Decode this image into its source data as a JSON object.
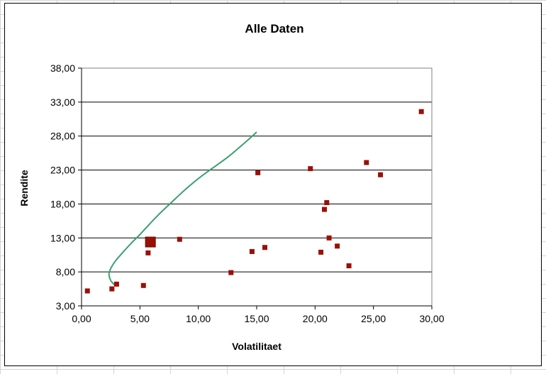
{
  "chart_data": {
    "type": "scatter",
    "title": "Alle Daten",
    "xlabel": "Volatilitaet",
    "ylabel": "Rendite",
    "xlim": [
      0,
      30
    ],
    "ylim": [
      3,
      38
    ],
    "x_ticks": [
      "0,00",
      "5,00",
      "10,00",
      "15,00",
      "20,00",
      "25,00",
      "30,00"
    ],
    "x_tick_values": [
      0,
      5,
      10,
      15,
      20,
      25,
      30
    ],
    "y_ticks": [
      "3,00",
      "8,00",
      "13,00",
      "18,00",
      "23,00",
      "28,00",
      "33,00",
      "38,00"
    ],
    "y_tick_values": [
      3,
      8,
      13,
      18,
      23,
      28,
      33,
      38
    ],
    "grid": "horizontal",
    "marker_color": "#9a1006",
    "curve_color": "#3aa06f",
    "points": [
      {
        "x": 0.5,
        "y": 5.2
      },
      {
        "x": 2.6,
        "y": 5.5
      },
      {
        "x": 3.0,
        "y": 6.2
      },
      {
        "x": 5.3,
        "y": 6.0
      },
      {
        "x": 5.7,
        "y": 10.8
      },
      {
        "x": 8.4,
        "y": 12.8
      },
      {
        "x": 12.8,
        "y": 7.9
      },
      {
        "x": 14.6,
        "y": 11.0
      },
      {
        "x": 15.1,
        "y": 22.6
      },
      {
        "x": 15.7,
        "y": 11.6
      },
      {
        "x": 19.6,
        "y": 23.2
      },
      {
        "x": 20.5,
        "y": 10.9
      },
      {
        "x": 20.8,
        "y": 17.2
      },
      {
        "x": 21.0,
        "y": 18.2
      },
      {
        "x": 21.2,
        "y": 13.0
      },
      {
        "x": 21.9,
        "y": 11.8
      },
      {
        "x": 22.9,
        "y": 8.9
      },
      {
        "x": 24.4,
        "y": 24.1
      },
      {
        "x": 25.6,
        "y": 22.3
      },
      {
        "x": 29.1,
        "y": 31.6
      }
    ],
    "highlight_point": {
      "x": 5.9,
      "y": 12.4
    },
    "efficient_frontier": [
      {
        "x": 2.5,
        "y": 6.7
      },
      {
        "x": 2.35,
        "y": 7.6
      },
      {
        "x": 2.5,
        "y": 8.5
      },
      {
        "x": 2.9,
        "y": 9.6
      },
      {
        "x": 3.5,
        "y": 10.8
      },
      {
        "x": 4.3,
        "y": 12.3
      },
      {
        "x": 5.0,
        "y": 13.5
      },
      {
        "x": 5.8,
        "y": 15.0
      },
      {
        "x": 6.7,
        "y": 16.6
      },
      {
        "x": 7.8,
        "y": 18.4
      },
      {
        "x": 9.0,
        "y": 20.3
      },
      {
        "x": 10.2,
        "y": 22.0
      },
      {
        "x": 11.4,
        "y": 23.5
      },
      {
        "x": 12.6,
        "y": 25.0
      },
      {
        "x": 13.7,
        "y": 26.6
      },
      {
        "x": 14.5,
        "y": 27.8
      },
      {
        "x": 15.0,
        "y": 28.6
      }
    ],
    "frontier_start_hook": [
      {
        "x": 2.5,
        "y": 6.7
      },
      {
        "x": 2.8,
        "y": 6.1
      }
    ]
  }
}
